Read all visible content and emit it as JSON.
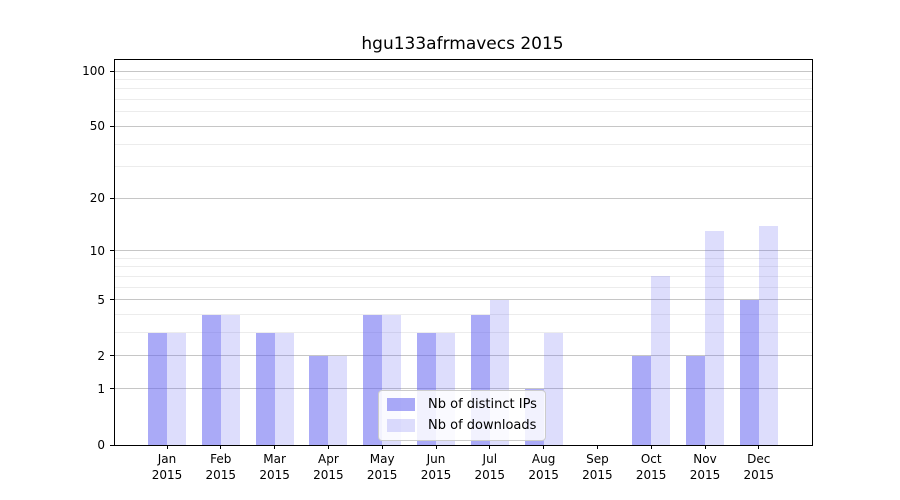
{
  "chart_data": {
    "type": "bar",
    "title": "hgu133afrmavecs 2015",
    "year_label": "2015",
    "categories": [
      "Jan",
      "Feb",
      "Mar",
      "Apr",
      "May",
      "Jun",
      "Jul",
      "Aug",
      "Sep",
      "Oct",
      "Nov",
      "Dec"
    ],
    "series": [
      {
        "name": "Nb of distinct IPs",
        "color": "#6464f0",
        "alpha": 0.55,
        "visible_color": "#aaaaf5",
        "values": [
          3,
          4,
          3,
          2,
          4,
          3,
          4,
          1,
          0,
          2,
          2,
          5
        ]
      },
      {
        "name": "Nb of downloads",
        "color": "#6464f0",
        "alpha": 0.22,
        "visible_color": "#dcdcf8",
        "values": [
          3,
          4,
          3,
          2,
          4,
          3,
          5,
          3,
          0,
          7,
          13,
          14
        ]
      }
    ],
    "y_axis": {
      "scale": "log10(value+1)",
      "ticks": [
        0,
        1,
        2,
        5,
        10,
        20,
        50,
        100
      ],
      "minor_gridlines": [
        3,
        4,
        6,
        7,
        8,
        9,
        30,
        40,
        60,
        70,
        80,
        90
      ],
      "top_value": 100
    },
    "x_axis": {
      "tick_labels_line1": [
        "Jan",
        "Feb",
        "Mar",
        "Apr",
        "May",
        "Jun",
        "Jul",
        "Aug",
        "Sep",
        "Oct",
        "Nov",
        "Dec"
      ],
      "tick_labels_line2": "2015"
    },
    "legend": {
      "items": [
        "Nb of distinct IPs",
        "Nb of downloads"
      ],
      "position": "lower-center"
    },
    "grid": true,
    "colors": {
      "major_grid": "#c6c6c6",
      "minor_grid": "#ececec",
      "spine": "#000000",
      "background": "#ffffff"
    }
  }
}
